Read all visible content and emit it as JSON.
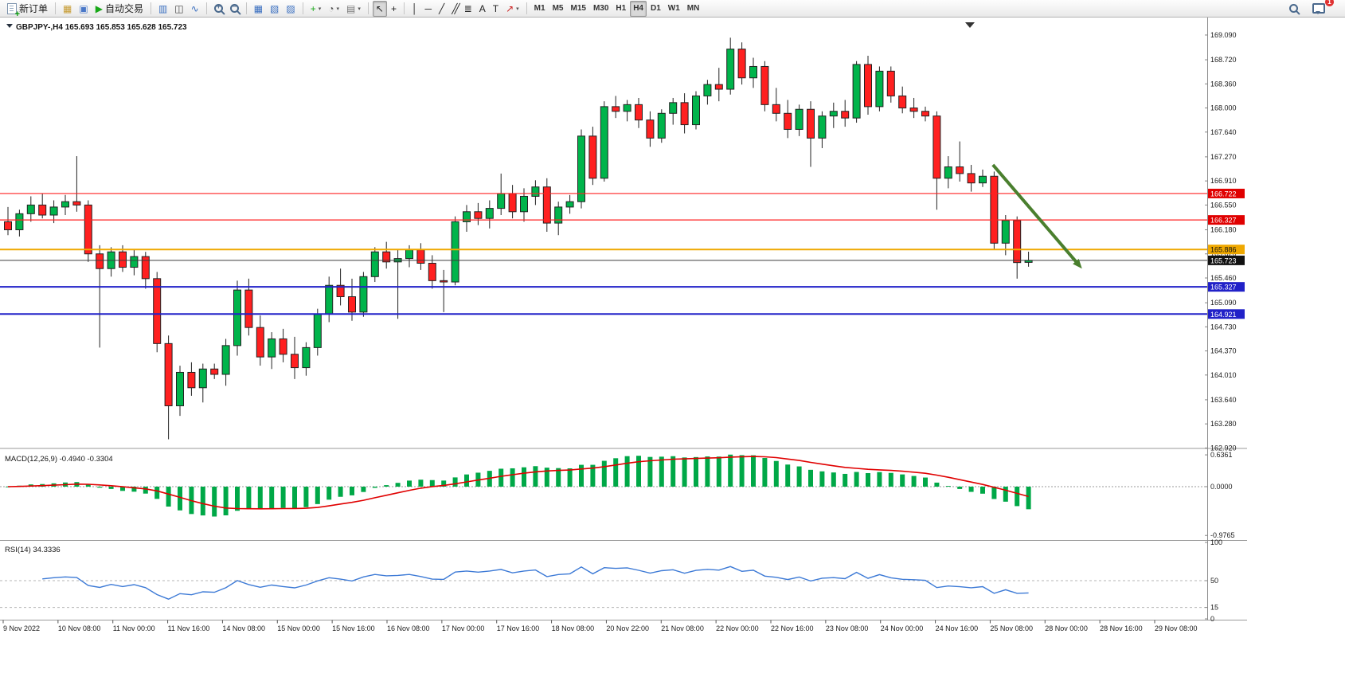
{
  "toolbar": {
    "items": [
      {
        "name": "new-order-button",
        "icon": "new-order",
        "label": "新订单"
      },
      {
        "type": "sep"
      },
      {
        "name": "charts-panel-button",
        "icon": "gold"
      },
      {
        "name": "profiles-button",
        "icon": "profile"
      },
      {
        "name": "autotrading-button",
        "icon": "play",
        "label": "自动交易"
      },
      {
        "type": "sep"
      },
      {
        "name": "bar-chart-button",
        "icon": "bars"
      },
      {
        "name": "candlestick-chart-button",
        "icon": "candles"
      },
      {
        "name": "line-chart-button",
        "icon": "line"
      },
      {
        "type": "sep"
      },
      {
        "name": "zoom-in-button",
        "icon": "zoom-in"
      },
      {
        "name": "zoom-out-button",
        "icon": "zoom-out"
      },
      {
        "type": "sep"
      },
      {
        "name": "tile-windows-button",
        "icon": "tile"
      },
      {
        "name": "indicator-window-button",
        "icon": "ind1"
      },
      {
        "name": "chart-list-button",
        "icon": "ind2"
      },
      {
        "type": "sep"
      },
      {
        "name": "add-indicator-button",
        "icon": "plus",
        "dropdown": true
      },
      {
        "name": "periods-button",
        "icon": "clock",
        "dropdown": true
      },
      {
        "name": "templates-button",
        "icon": "template",
        "dropdown": true
      },
      {
        "type": "sep"
      },
      {
        "name": "cursor-button",
        "icon": "cursor",
        "active": true
      },
      {
        "name": "crosshair-button",
        "icon": "crosshair"
      },
      {
        "type": "sep"
      },
      {
        "name": "vertical-line-button",
        "icon": "vline"
      },
      {
        "name": "horizontal-line-button",
        "icon": "hline"
      },
      {
        "name": "trendline-button",
        "icon": "trendline"
      },
      {
        "name": "channel-button",
        "icon": "channel"
      },
      {
        "name": "fibonacci-button",
        "icon": "fibo"
      },
      {
        "name": "text-button",
        "icon": "textA"
      },
      {
        "name": "text-label-button",
        "icon": "textT"
      },
      {
        "name": "arrows-button",
        "icon": "arrowshape",
        "dropdown": true
      },
      {
        "type": "sep"
      },
      {
        "name": "timeframe-m1-button",
        "label": "M1",
        "tf": true
      },
      {
        "name": "timeframe-m5-button",
        "label": "M5",
        "tf": true
      },
      {
        "name": "timeframe-m15-button",
        "label": "M15",
        "tf": true
      },
      {
        "name": "timeframe-m30-button",
        "label": "M30",
        "tf": true
      },
      {
        "name": "timeframe-h1-button",
        "label": "H1",
        "tf": true
      },
      {
        "name": "timeframe-h4-button",
        "label": "H4",
        "tf": true,
        "active": true
      },
      {
        "name": "timeframe-d1-button",
        "label": "D1",
        "tf": true
      },
      {
        "name": "timeframe-w1-button",
        "label": "W1",
        "tf": true
      },
      {
        "name": "timeframe-mn-button",
        "label": "MN",
        "tf": true
      }
    ],
    "right_items": [
      {
        "name": "search-button",
        "icon": "search"
      },
      {
        "name": "notifications-button",
        "icon": "chat",
        "badge": "1"
      }
    ]
  },
  "chart": {
    "header": "GBPJPY-,H4 165.693 165.853 165.628 165.723",
    "indicator_labels": {
      "macd": "MACD(12,26,9) -0.4940 -0.3304",
      "rsi": "RSI(14) 34.3336"
    }
  },
  "chart_data": {
    "type": "candlestick",
    "title": "GBPJPY-,H4",
    "symbol": "GBPJPY-",
    "timeframe": "H4",
    "current_ohlc": {
      "open": 165.693,
      "high": 165.853,
      "low": 165.628,
      "close": 165.723
    },
    "up_color": "#00b44b",
    "down_color": "#ff2020",
    "candle_outline": "#222222",
    "ylim": [
      162.925,
      169.28
    ],
    "y_ticks": [
      "169.090",
      "168.720",
      "168.360",
      "168.000",
      "167.640",
      "167.270",
      "166.910",
      "166.550",
      "166.180",
      "165.820",
      "165.460",
      "165.090",
      "164.730",
      "164.370",
      "164.010",
      "163.640",
      "163.280",
      "162.920"
    ],
    "x_labels": [
      "9 Nov 2022",
      "10 Nov 08:00",
      "11 Nov 00:00",
      "11 Nov 16:00",
      "14 Nov 08:00",
      "15 Nov 00:00",
      "15 Nov 16:00",
      "16 Nov 08:00",
      "17 Nov 00:00",
      "17 Nov 16:00",
      "18 Nov 08:00",
      "20 Nov 22:00",
      "21 Nov 08:00",
      "22 Nov 00:00",
      "22 Nov 16:00",
      "23 Nov 08:00",
      "24 Nov 00:00",
      "24 Nov 16:00",
      "25 Nov 08:00",
      "28 Nov 00:00",
      "28 Nov 16:00",
      "29 Nov 08:00"
    ],
    "candles": [
      [
        166.3,
        166.52,
        166.1,
        166.18
      ],
      [
        166.18,
        166.48,
        166.08,
        166.42
      ],
      [
        166.42,
        166.68,
        166.3,
        166.55
      ],
      [
        166.55,
        166.72,
        166.35,
        166.4
      ],
      [
        166.4,
        166.62,
        166.28,
        166.52
      ],
      [
        166.52,
        166.7,
        166.4,
        166.6
      ],
      [
        166.6,
        167.28,
        166.45,
        166.55
      ],
      [
        166.55,
        166.62,
        165.7,
        165.82
      ],
      [
        165.82,
        165.95,
        164.42,
        165.6
      ],
      [
        165.6,
        165.92,
        165.48,
        165.85
      ],
      [
        165.85,
        165.95,
        165.55,
        165.62
      ],
      [
        165.62,
        165.88,
        165.5,
        165.78
      ],
      [
        165.78,
        165.85,
        165.3,
        165.45
      ],
      [
        165.45,
        165.55,
        164.35,
        164.48
      ],
      [
        164.48,
        164.6,
        163.05,
        163.55
      ],
      [
        163.55,
        164.15,
        163.4,
        164.05
      ],
      [
        164.05,
        164.2,
        163.7,
        163.82
      ],
      [
        163.82,
        164.18,
        163.6,
        164.1
      ],
      [
        164.1,
        164.18,
        163.95,
        164.02
      ],
      [
        164.02,
        164.55,
        163.85,
        164.45
      ],
      [
        164.45,
        165.42,
        164.3,
        165.28
      ],
      [
        165.28,
        165.45,
        164.6,
        164.72
      ],
      [
        164.72,
        164.9,
        164.15,
        164.28
      ],
      [
        164.28,
        164.65,
        164.1,
        164.55
      ],
      [
        164.55,
        164.7,
        164.2,
        164.32
      ],
      [
        164.32,
        164.58,
        163.95,
        164.12
      ],
      [
        164.12,
        164.5,
        164.0,
        164.42
      ],
      [
        164.42,
        165.0,
        164.3,
        164.92
      ],
      [
        164.92,
        165.48,
        164.8,
        165.35
      ],
      [
        165.35,
        165.6,
        165.05,
        165.18
      ],
      [
        165.18,
        165.45,
        164.82,
        164.95
      ],
      [
        164.95,
        165.55,
        164.88,
        165.48
      ],
      [
        165.48,
        165.92,
        165.4,
        165.85
      ],
      [
        165.85,
        166.0,
        165.6,
        165.7
      ],
      [
        165.7,
        165.88,
        164.85,
        165.75
      ],
      [
        165.75,
        165.95,
        165.62,
        165.88
      ],
      [
        165.88,
        165.98,
        165.58,
        165.68
      ],
      [
        165.68,
        165.8,
        165.3,
        165.42
      ],
      [
        165.42,
        165.58,
        164.95,
        165.4
      ],
      [
        165.4,
        166.38,
        165.35,
        166.3
      ],
      [
        166.3,
        166.55,
        166.15,
        166.45
      ],
      [
        166.45,
        166.58,
        166.25,
        166.35
      ],
      [
        166.35,
        166.62,
        166.2,
        166.5
      ],
      [
        166.5,
        167.02,
        166.4,
        166.72
      ],
      [
        166.72,
        166.85,
        166.35,
        166.45
      ],
      [
        166.45,
        166.8,
        166.3,
        166.68
      ],
      [
        166.68,
        166.92,
        166.55,
        166.82
      ],
      [
        166.82,
        166.95,
        166.15,
        166.28
      ],
      [
        166.28,
        166.6,
        166.1,
        166.52
      ],
      [
        166.52,
        166.7,
        166.42,
        166.6
      ],
      [
        166.6,
        167.68,
        166.5,
        167.58
      ],
      [
        167.58,
        167.72,
        166.85,
        166.95
      ],
      [
        166.95,
        168.1,
        166.9,
        168.02
      ],
      [
        168.02,
        168.18,
        167.85,
        167.95
      ],
      [
        167.95,
        168.12,
        167.8,
        168.05
      ],
      [
        168.05,
        168.15,
        167.7,
        167.82
      ],
      [
        167.82,
        167.95,
        167.42,
        167.55
      ],
      [
        167.55,
        167.98,
        167.48,
        167.92
      ],
      [
        167.92,
        168.15,
        167.75,
        168.08
      ],
      [
        168.08,
        168.22,
        167.62,
        167.75
      ],
      [
        167.75,
        168.25,
        167.68,
        168.18
      ],
      [
        168.18,
        168.42,
        168.05,
        168.35
      ],
      [
        168.35,
        168.6,
        168.1,
        168.28
      ],
      [
        168.28,
        169.05,
        168.2,
        168.88
      ],
      [
        168.88,
        168.98,
        168.35,
        168.45
      ],
      [
        168.45,
        168.75,
        168.3,
        168.62
      ],
      [
        168.62,
        168.7,
        167.95,
        168.05
      ],
      [
        168.05,
        168.3,
        167.8,
        167.92
      ],
      [
        167.92,
        168.12,
        167.55,
        167.68
      ],
      [
        167.68,
        168.05,
        167.58,
        167.98
      ],
      [
        167.98,
        168.1,
        167.12,
        167.55
      ],
      [
        167.55,
        167.95,
        167.4,
        167.88
      ],
      [
        167.88,
        168.08,
        167.7,
        167.95
      ],
      [
        167.95,
        168.12,
        167.72,
        167.85
      ],
      [
        167.85,
        168.7,
        167.78,
        168.65
      ],
      [
        168.65,
        168.78,
        167.9,
        168.02
      ],
      [
        168.02,
        168.62,
        167.95,
        168.55
      ],
      [
        168.55,
        168.62,
        168.08,
        168.18
      ],
      [
        168.18,
        168.32,
        167.92,
        168.0
      ],
      [
        168.0,
        168.15,
        167.85,
        167.95
      ],
      [
        167.95,
        168.02,
        167.8,
        167.88
      ],
      [
        167.88,
        167.95,
        166.48,
        166.95
      ],
      [
        166.95,
        167.28,
        166.8,
        167.12
      ],
      [
        167.12,
        167.5,
        166.9,
        167.02
      ],
      [
        167.02,
        167.15,
        166.75,
        166.88
      ],
      [
        166.88,
        167.08,
        166.82,
        166.98
      ],
      [
        166.98,
        167.05,
        165.88,
        165.98
      ],
      [
        165.98,
        166.4,
        165.8,
        166.32
      ],
      [
        166.32,
        166.38,
        165.45,
        165.69
      ],
      [
        165.693,
        165.853,
        165.628,
        165.723
      ]
    ],
    "hlines": [
      {
        "name": "resistance-line-upper",
        "price": 166.722,
        "label": "166.722",
        "color": "#ff2020",
        "badge_bg": "#e00000",
        "badge_fg": "#ffffff",
        "width": 1.2
      },
      {
        "name": "resistance-line-lower",
        "price": 166.327,
        "label": "166.327",
        "color": "#ff2020",
        "badge_bg": "#e00000",
        "badge_fg": "#ffffff",
        "width": 1.2
      },
      {
        "name": "pivot-line-gold",
        "price": 165.886,
        "label": "165.886",
        "color": "#efa800",
        "badge_bg": "#efa800",
        "badge_fg": "#111111",
        "width": 2
      },
      {
        "name": "bid-price-line",
        "price": 165.723,
        "label": "165.723",
        "color": "#3c3c3c",
        "badge_bg": "#111111",
        "badge_fg": "#ffffff",
        "width": 1
      },
      {
        "name": "support-line-upper",
        "price": 165.327,
        "label": "165.327",
        "color": "#2121c8",
        "badge_bg": "#2121c8",
        "badge_fg": "#ffffff",
        "width": 2
      },
      {
        "name": "support-line-lower",
        "price": 164.921,
        "label": "164.921",
        "color": "#2121c8",
        "badge_bg": "#2121c8",
        "badge_fg": "#ffffff",
        "width": 2
      }
    ],
    "trend_arrow": {
      "from": {
        "x_frac": 0.822,
        "price": 167.15
      },
      "to": {
        "x_frac": 0.896,
        "price": 165.6
      },
      "color": "#4a7f2e",
      "width": 4
    },
    "indicators": [
      {
        "type": "macd",
        "label": "MACD(12,26,9) -0.4940 -0.3304",
        "fast": 12,
        "slow": 26,
        "signal": 9,
        "values": [
          -0.494,
          -0.3304
        ],
        "scale_labels": [
          "0.6361",
          "0.0000",
          "-0.9765"
        ],
        "histogram_color": "#00a847",
        "signal_color": "#e00000"
      },
      {
        "type": "rsi",
        "label": "RSI(14) 34.3336",
        "period": 14,
        "value": 34.3336,
        "scale_labels": [
          "100",
          "50",
          "15",
          "0"
        ],
        "levels": [
          50,
          15
        ],
        "line_color": "#3d7ad6"
      }
    ]
  }
}
